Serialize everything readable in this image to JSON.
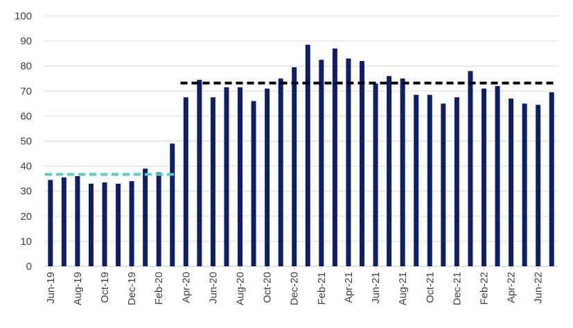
{
  "chart_data": {
    "type": "bar",
    "title": "",
    "xlabel": "",
    "ylabel": "",
    "ylim": [
      0,
      100
    ],
    "yticks": [
      0,
      10,
      20,
      30,
      40,
      50,
      60,
      70,
      80,
      90,
      100
    ],
    "grid": true,
    "legend": "none",
    "bar_color": "#0d1f6b",
    "categories": [
      "Jun-19",
      "Jul-19",
      "Aug-19",
      "Sep-19",
      "Oct-19",
      "Nov-19",
      "Dec-19",
      "Jan-20",
      "Feb-20",
      "Mar-20",
      "Apr-20",
      "May-20",
      "Jun-20",
      "Jul-20",
      "Aug-20",
      "Sep-20",
      "Oct-20",
      "Nov-20",
      "Dec-20",
      "Jan-21",
      "Feb-21",
      "Mar-21",
      "Apr-21",
      "May-21",
      "Jun-21",
      "Jul-21",
      "Aug-21",
      "Sep-21",
      "Oct-21",
      "Nov-21",
      "Dec-21",
      "Jan-22",
      "Feb-22",
      "Mar-22",
      "Apr-22",
      "May-22",
      "Jun-22",
      "Jul-22"
    ],
    "tick_labels": [
      "Jun-19",
      "Aug-19",
      "Oct-19",
      "Dec-19",
      "Feb-20",
      "Apr-20",
      "Jun-20",
      "Aug-20",
      "Oct-20",
      "Dec-20",
      "Feb-21",
      "Apr-21",
      "Jun-21",
      "Aug-21",
      "Oct-21",
      "Dec-21",
      "Feb-22",
      "Apr-22",
      "Jun-22"
    ],
    "values": [
      34.5,
      35.5,
      36,
      33,
      33.5,
      33,
      34,
      39,
      37.5,
      49,
      67.5,
      74.5,
      67.5,
      71.5,
      71.5,
      66,
      71,
      75,
      79.5,
      88.5,
      82.5,
      87,
      83,
      82,
      73,
      76,
      75,
      68.5,
      68.5,
      65,
      67.5,
      78,
      71,
      72,
      67,
      65,
      64.5,
      69.5
    ],
    "reference_lines": [
      {
        "y": 36.7,
        "from_index": 0,
        "to_index": 9,
        "color": "#4dd0c8"
      },
      {
        "y": 73.2,
        "from_index": 10,
        "to_index": 37,
        "color": "#000000"
      }
    ]
  }
}
